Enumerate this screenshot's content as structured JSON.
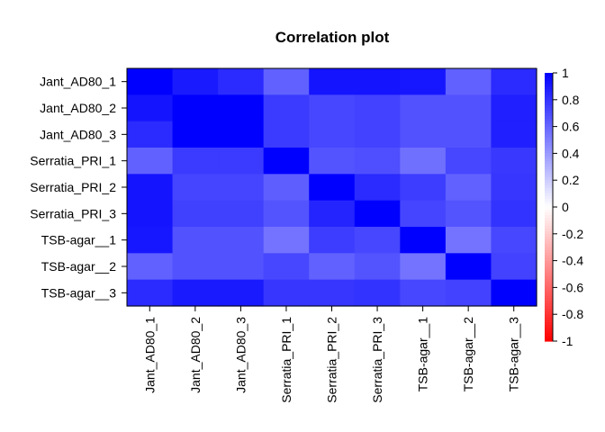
{
  "chart_data": {
    "type": "heatmap",
    "title": "Correlation plot",
    "xlabel": "",
    "ylabel": "",
    "rows": [
      "Jant_AD80_1",
      "Jant_AD80_2",
      "Jant_AD80_3",
      "Serratia_PRI_1",
      "Serratia_PRI_2",
      "Serratia_PRI_3",
      "TSB-agar__1",
      "TSB-agar__2",
      "TSB-agar__3"
    ],
    "columns": [
      "Jant_AD80_1",
      "Jant_AD80_2",
      "Jant_AD80_3",
      "Serratia_PRI_1",
      "Serratia_PRI_2",
      "Serratia_PRI_3",
      "TSB-agar__1",
      "TSB-agar__2",
      "TSB-agar__3"
    ],
    "values": [
      [
        1.0,
        0.9,
        0.83,
        0.62,
        0.92,
        0.92,
        0.91,
        0.62,
        0.83
      ],
      [
        0.92,
        1.0,
        1.0,
        0.77,
        0.72,
        0.74,
        0.68,
        0.68,
        0.88
      ],
      [
        0.83,
        1.0,
        1.0,
        0.77,
        0.72,
        0.74,
        0.68,
        0.68,
        0.88
      ],
      [
        0.62,
        0.77,
        0.77,
        1.0,
        0.67,
        0.69,
        0.56,
        0.72,
        0.78
      ],
      [
        0.92,
        0.73,
        0.73,
        0.63,
        1.0,
        0.83,
        0.76,
        0.62,
        0.79
      ],
      [
        0.92,
        0.75,
        0.75,
        0.67,
        0.86,
        1.0,
        0.73,
        0.67,
        0.8
      ],
      [
        0.91,
        0.68,
        0.68,
        0.55,
        0.76,
        0.72,
        1.0,
        0.55,
        0.72
      ],
      [
        0.62,
        0.68,
        0.68,
        0.72,
        0.62,
        0.67,
        0.55,
        1.0,
        0.74
      ],
      [
        0.83,
        0.9,
        0.9,
        0.79,
        0.79,
        0.8,
        0.72,
        0.74,
        1.0
      ]
    ],
    "colorscale": {
      "min": -1,
      "mid": 0,
      "max": 1,
      "low_color": "#ff0000",
      "mid_color": "#ffffff",
      "high_color": "#0000ff"
    },
    "colorbar_ticks": [
      "1",
      "0.8",
      "0.6",
      "0.4",
      "0.2",
      "0",
      "-0.2",
      "-0.4",
      "-0.6",
      "-0.8",
      "-1"
    ],
    "legend": "right",
    "grid": false
  }
}
